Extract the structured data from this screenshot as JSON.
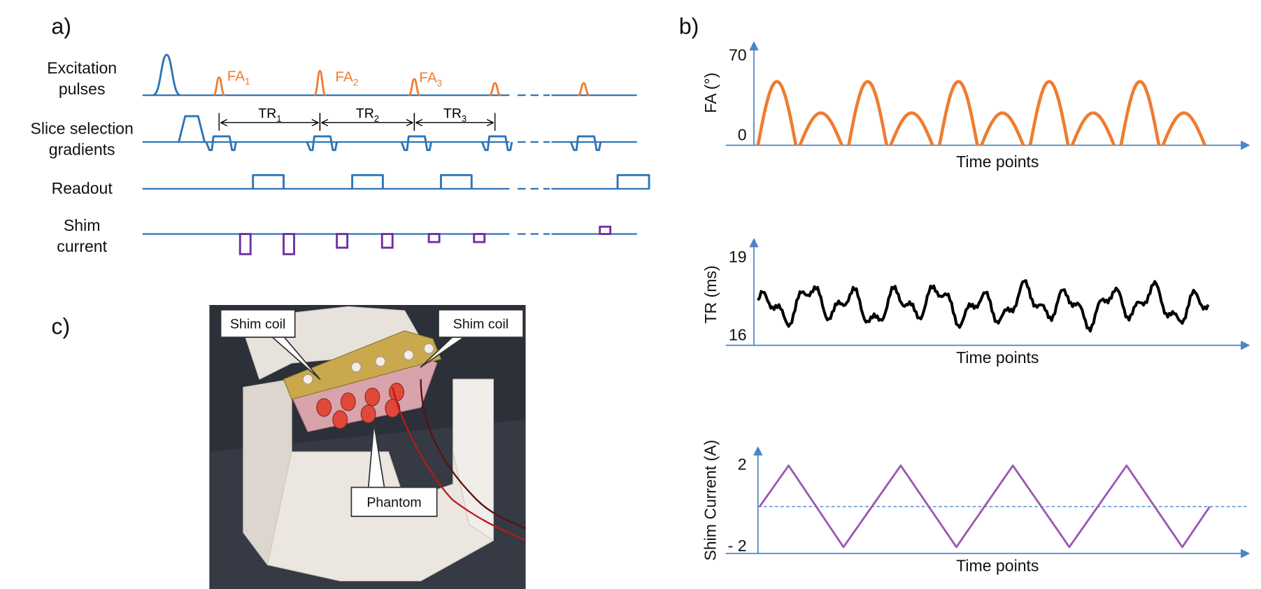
{
  "panel_a": {
    "label": "a)",
    "rows": [
      {
        "lines": [
          "Excitation",
          "pulses"
        ]
      },
      {
        "lines": [
          "Slice selection",
          "gradients"
        ]
      },
      {
        "lines": [
          "Readout"
        ]
      },
      {
        "lines": [
          "Shim",
          "current"
        ]
      }
    ],
    "flip_angles": [
      {
        "text": "FA",
        "sub": "1"
      },
      {
        "text": "FA",
        "sub": "2"
      },
      {
        "text": "FA",
        "sub": "3"
      }
    ],
    "repetition_times": [
      {
        "text": "TR",
        "sub": "1"
      },
      {
        "text": "TR",
        "sub": "2"
      },
      {
        "text": "TR",
        "sub": "3"
      }
    ]
  },
  "panel_b": {
    "label": "b)",
    "plots": [
      {
        "y_label": "FA (°)",
        "y_top": "70",
        "y_bottom": "0",
        "x_label": "Time points"
      },
      {
        "y_label": "TR (ms)",
        "y_top": "19",
        "y_bottom": "16",
        "x_label": "Time points"
      },
      {
        "y_label": "Shim Current (A)",
        "y_top": "2",
        "y_bottom": "- 2",
        "x_label": "Time points"
      }
    ]
  },
  "panel_c": {
    "label": "c)",
    "callouts": [
      "Shim coil",
      "Shim coil",
      "Phantom"
    ]
  }
}
